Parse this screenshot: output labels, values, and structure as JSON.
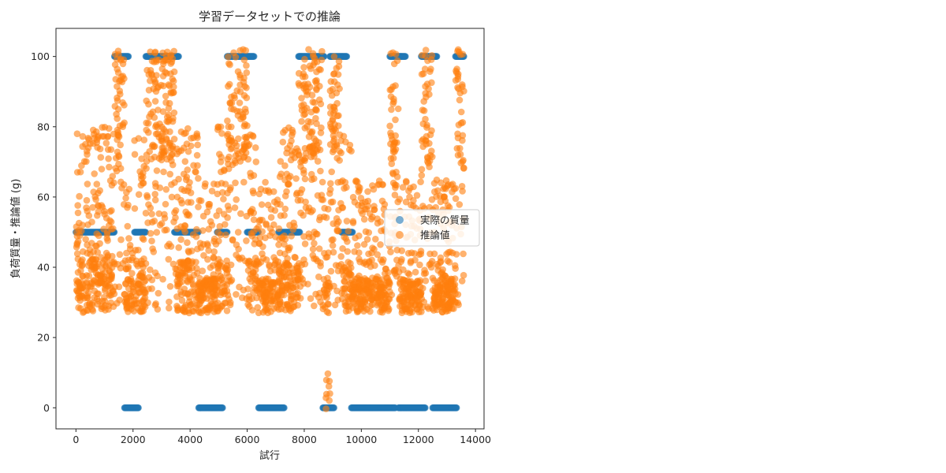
{
  "chart_data": {
    "type": "scatter",
    "title": "学習データセットでの推論",
    "xlabel": "試行",
    "ylabel": "負荷質量・推論値 (g)",
    "xlim": [
      -700,
      14300
    ],
    "ylim": [
      -6,
      108
    ],
    "xticks": [
      0,
      2000,
      4000,
      6000,
      8000,
      10000,
      12000,
      14000
    ],
    "yticks": [
      0,
      20,
      40,
      60,
      80,
      100
    ],
    "legend_position": "center-right",
    "series": [
      {
        "name": "実際の質量",
        "color": "#1f77b4",
        "segments": [
          {
            "x_start": 0,
            "x_end": 1350,
            "value": 50
          },
          {
            "x_start": 1350,
            "x_end": 1850,
            "value": 100
          },
          {
            "x_start": 1700,
            "x_end": 2200,
            "value": 0
          },
          {
            "x_start": 2050,
            "x_end": 2450,
            "value": 50
          },
          {
            "x_start": 2450,
            "x_end": 3600,
            "value": 100
          },
          {
            "x_start": 3450,
            "x_end": 4300,
            "value": 50
          },
          {
            "x_start": 4300,
            "x_end": 5150,
            "value": 0
          },
          {
            "x_start": 4950,
            "x_end": 5300,
            "value": 50
          },
          {
            "x_start": 5300,
            "x_end": 6250,
            "value": 100
          },
          {
            "x_start": 6000,
            "x_end": 6400,
            "value": 50
          },
          {
            "x_start": 6400,
            "x_end": 7300,
            "value": 0
          },
          {
            "x_start": 7100,
            "x_end": 7850,
            "value": 50
          },
          {
            "x_start": 7800,
            "x_end": 8700,
            "value": 100
          },
          {
            "x_start": 8650,
            "x_end": 9050,
            "value": 0
          },
          {
            "x_start": 8900,
            "x_end": 9500,
            "value": 100
          },
          {
            "x_start": 9300,
            "x_end": 9700,
            "value": 50
          },
          {
            "x_start": 9650,
            "x_end": 11200,
            "value": 0
          },
          {
            "x_start": 11000,
            "x_end": 11550,
            "value": 100
          },
          {
            "x_start": 11300,
            "x_end": 12250,
            "value": 0
          },
          {
            "x_start": 12100,
            "x_end": 12650,
            "value": 100
          },
          {
            "x_start": 12500,
            "x_end": 13350,
            "value": 0
          },
          {
            "x_start": 13300,
            "x_end": 13600,
            "value": 100
          }
        ]
      },
      {
        "name": "推論値",
        "color": "#ff7f0e",
        "x_range": [
          0,
          13600
        ],
        "y_range": [
          -1,
          103
        ],
        "description_levels": [
          30,
          50,
          80
        ]
      }
    ]
  }
}
